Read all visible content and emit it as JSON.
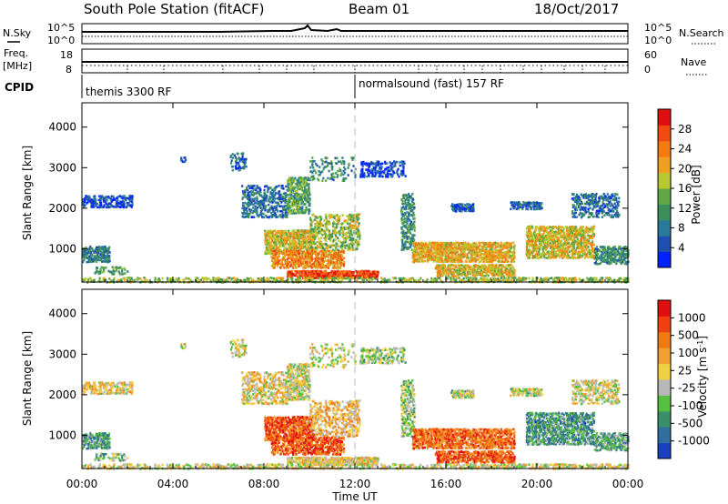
{
  "header": {
    "title": "South Pole Station (fitACF)",
    "beam": "Beam 01",
    "date": "18/Oct/2017"
  },
  "params": {
    "nsky_label": "N.Sky",
    "nsearch_label": "N.Search",
    "freq_label": "Freq.",
    "freq_unit": "[MHz]",
    "nave_label": "Nave",
    "cpid_label": "CPID",
    "left_ticks_top": [
      "10^5",
      "10^0"
    ],
    "left_ticks_freq": [
      "18",
      "8"
    ],
    "right_ticks_top": [
      "10^5",
      "10^0"
    ],
    "right_ticks_nave": [
      "60",
      "0"
    ],
    "cpid_segments": [
      {
        "label": "themis 3300 RF",
        "start_hour": 0
      },
      {
        "label": "normalsound (fast) 157 RF",
        "start_hour": 12
      }
    ]
  },
  "axes": {
    "ylabel": "Slant Range [km]",
    "xlabel": "Time UT",
    "xticks": [
      "00:00",
      "04:00",
      "08:00",
      "12:00",
      "16:00",
      "20:00",
      "00:00"
    ],
    "yticks": [
      "1000",
      "2000",
      "3000",
      "4000"
    ]
  },
  "chart_data": [
    {
      "type": "heatmap",
      "title": "",
      "ylabel": "Slant Range [km]",
      "xlabel": "",
      "xlim_hours": [
        0,
        24
      ],
      "ylim_km": [
        180,
        4600
      ],
      "colorbar": {
        "label": "Power [dB]",
        "ticks": [
          "4",
          "8",
          "12",
          "16",
          "20",
          "24",
          "28"
        ],
        "colors": [
          "#0022ff",
          "#1f4fb0",
          "#2a7a9a",
          "#3b8f5a",
          "#5fa845",
          "#b8c830",
          "#f0a020",
          "#f57a10",
          "#f04a10",
          "#e01010"
        ]
      }
    },
    {
      "type": "heatmap",
      "title": "",
      "ylabel": "Slant Range [km]",
      "xlabel": "Time UT",
      "xlim_hours": [
        0,
        24
      ],
      "ylim_km": [
        180,
        4600
      ],
      "colorbar": {
        "label": "Velocity [m s^-1]",
        "ticks": [
          "1000",
          "500",
          "100",
          "25",
          "-25",
          "-100",
          "-500",
          "-1000"
        ],
        "colors": [
          "#1a3fc0",
          "#2f6fa0",
          "#3a8f6a",
          "#55c040",
          "#b8b8b8",
          "#f0d040",
          "#f0a030",
          "#f07a10",
          "#f04010",
          "#e01010"
        ]
      }
    }
  ]
}
